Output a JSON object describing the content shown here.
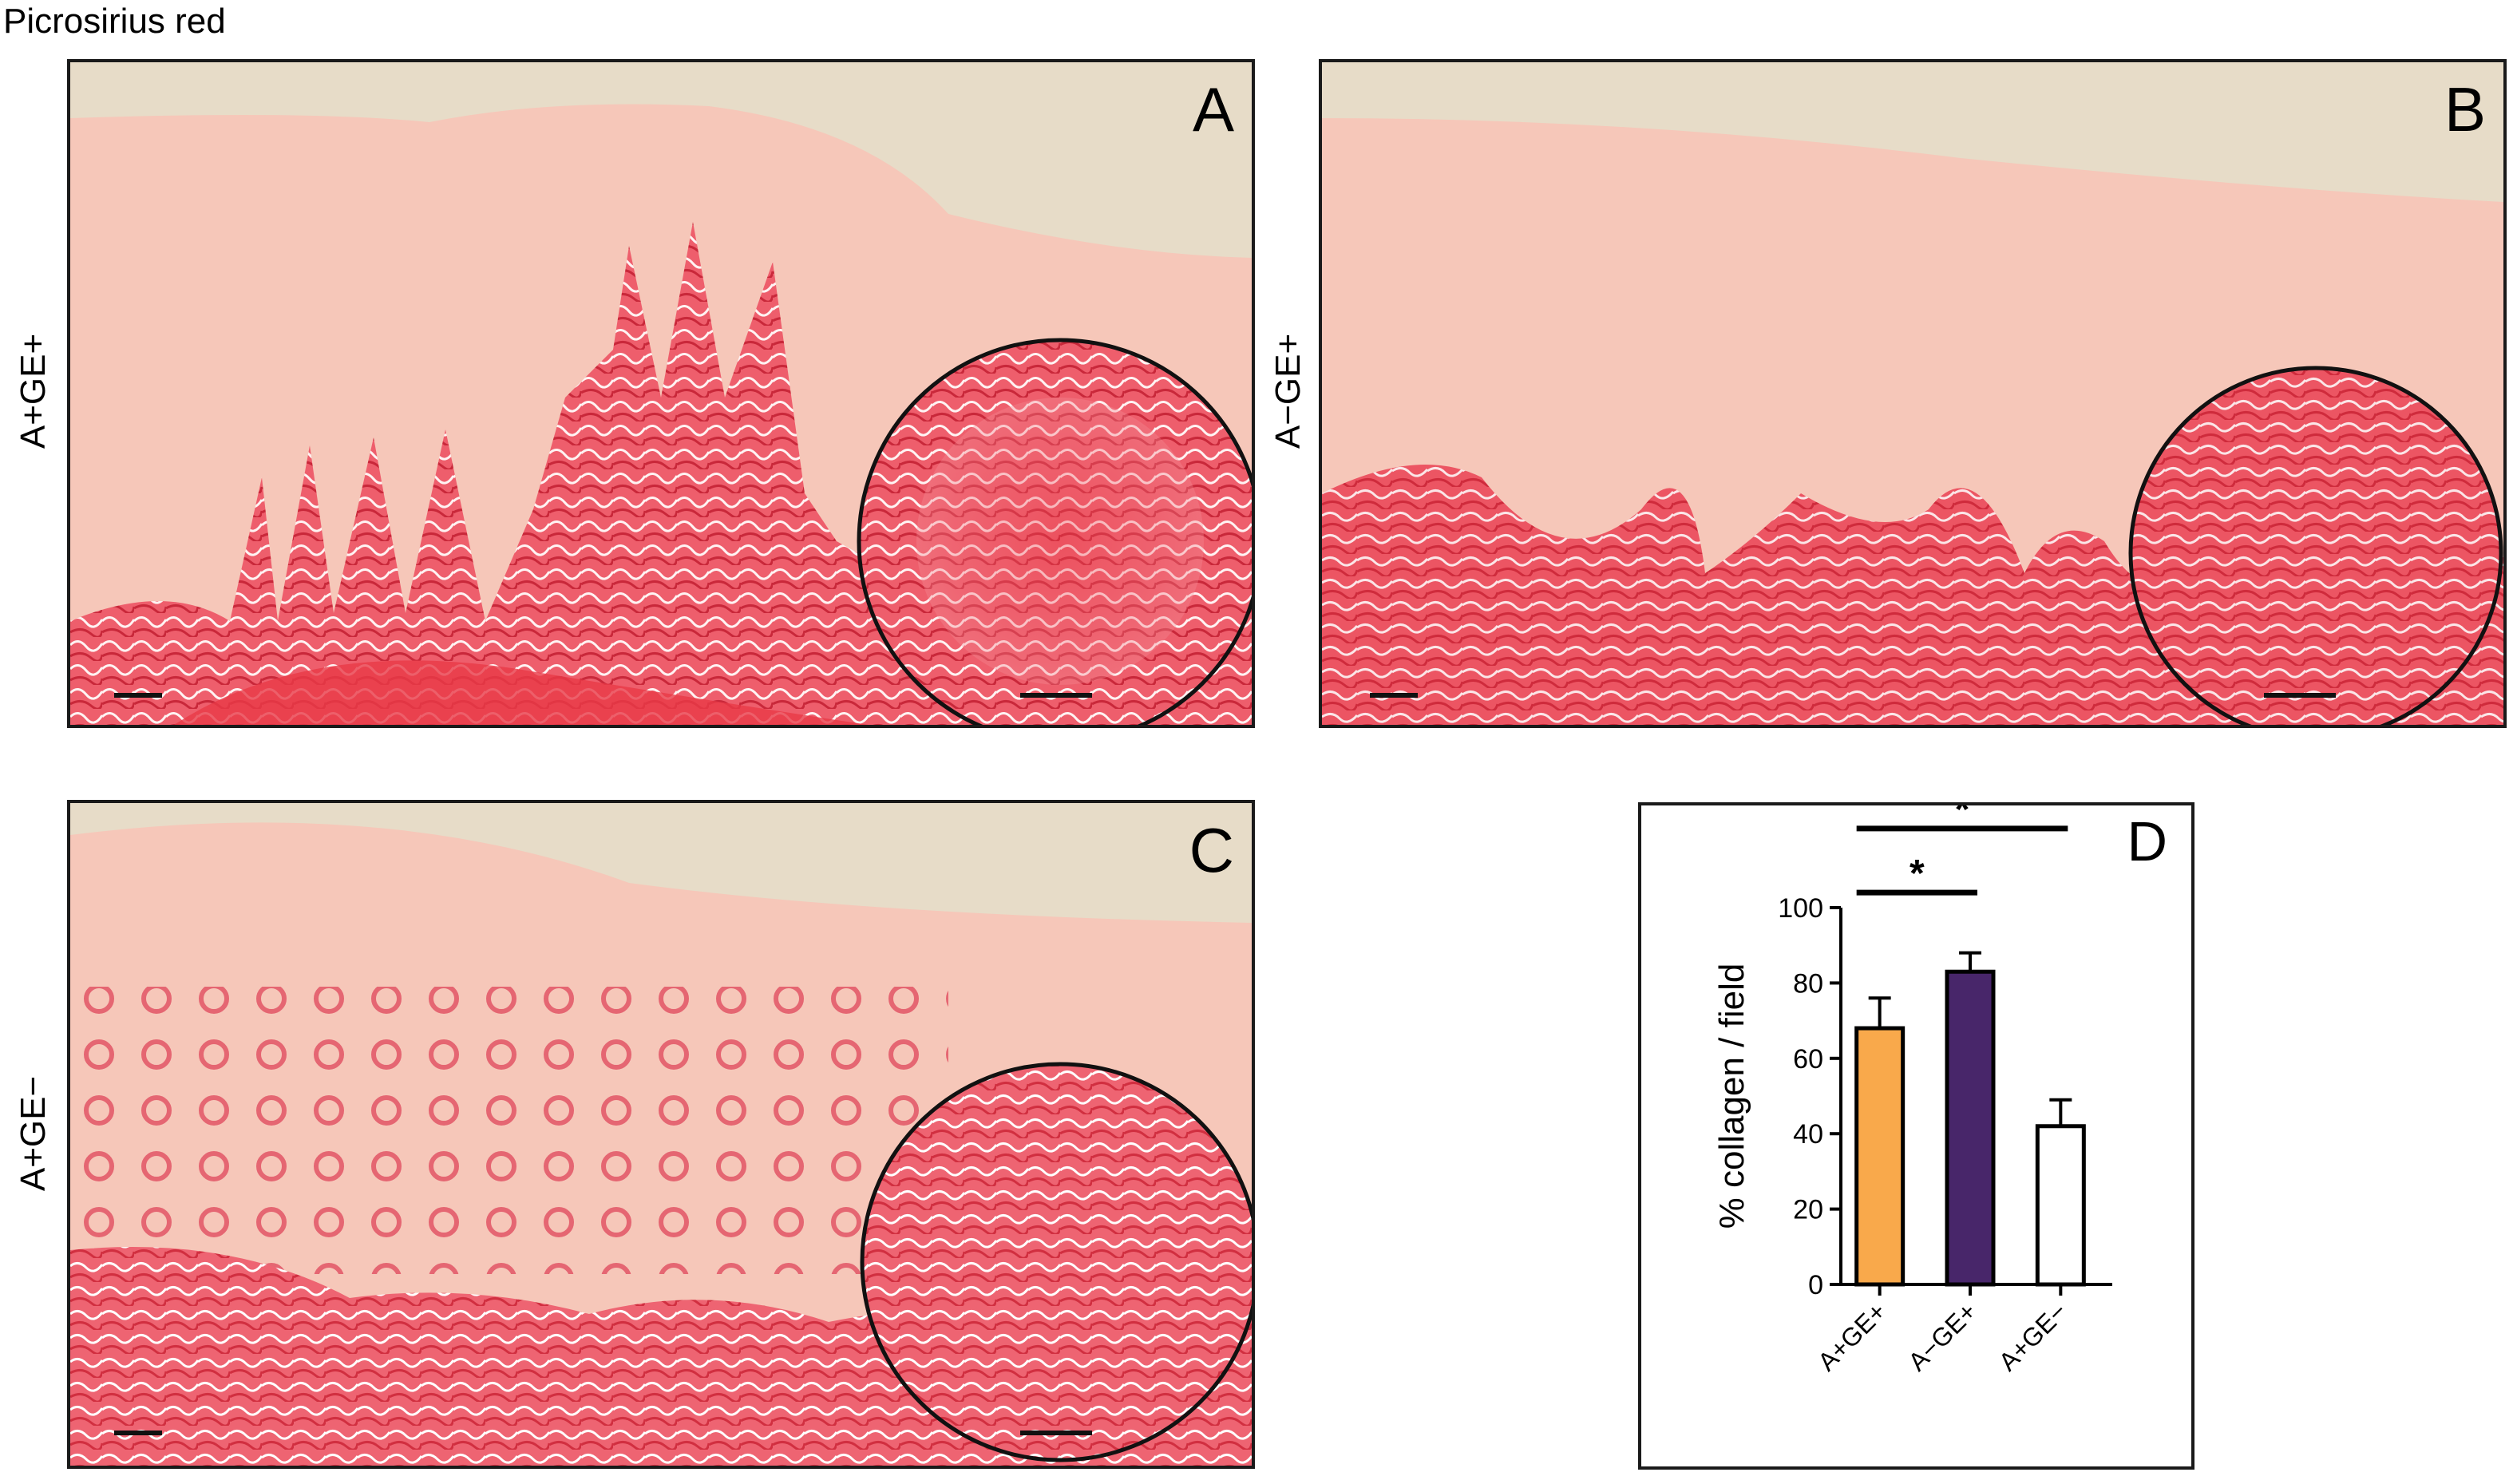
{
  "figure": {
    "title": "Picrosirius red"
  },
  "panels": [
    {
      "letter": "A",
      "row_label": "A+GE+"
    },
    {
      "letter": "B",
      "row_label": "A−GE+"
    },
    {
      "letter": "C",
      "row_label": "A+GE−"
    }
  ],
  "colors": {
    "background_beige": "#e7dcc8",
    "tissue_pink": "#f6c7b9",
    "collagen_red": "#e8384a",
    "bar_orange": "#f9a94b",
    "bar_purple": "#48266a",
    "bar_white": "#ffffff"
  },
  "chart_data": {
    "type": "bar",
    "panel_letter": "D",
    "categories": [
      "A+GE+",
      "A−GE+",
      "A+GE−"
    ],
    "values": [
      68,
      83,
      42
    ],
    "error": [
      8,
      5,
      7
    ],
    "bar_colors": [
      "#f9a94b",
      "#48266a",
      "#ffffff"
    ],
    "ylabel": "% collagen / field",
    "ylim": [
      0,
      100
    ],
    "yticks": [
      0,
      20,
      40,
      60,
      80,
      100
    ],
    "significance": [
      {
        "from": 0,
        "to": 1,
        "label": "*"
      },
      {
        "from": 0,
        "to": 2,
        "label": "*"
      }
    ]
  }
}
